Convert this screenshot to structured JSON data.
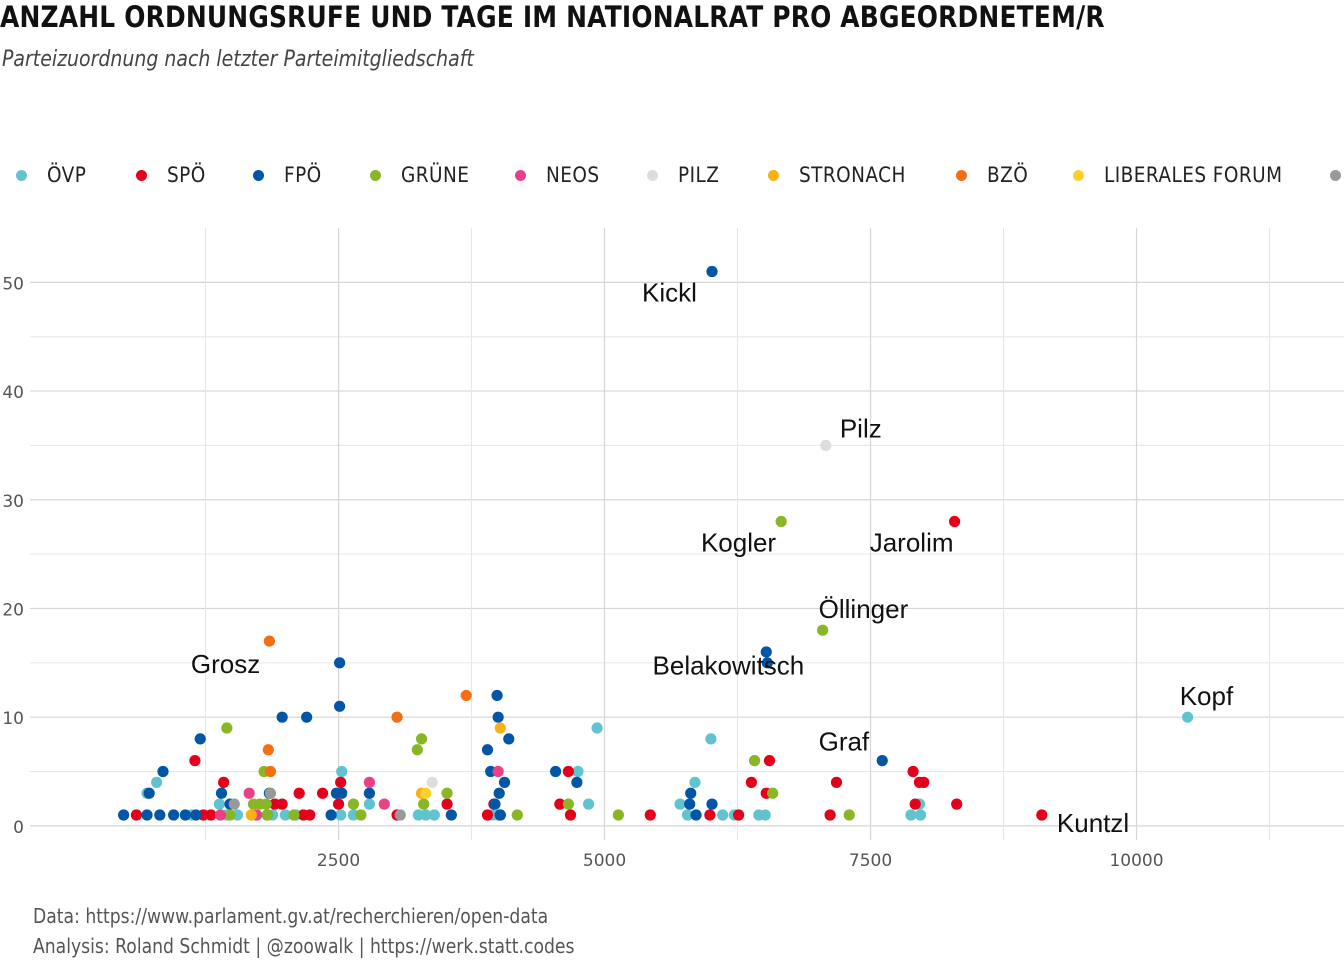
{
  "title": "ANZAHL ORDNUNGSRUFE UND TAGE IM NATIONALRAT PRO ABGEORDNETEM/R",
  "subtitle": "Parteizuordnung nach letzter Parteimitgliedschaft",
  "caption": {
    "line1": "Data: https://www.parlament.gv.at/recherchieren/open-data",
    "line2": "Analysis: Roland Schmidt | @zoowalk | https://werk.statt.codes"
  },
  "colors": {
    "ÖVP": "#62C3D0",
    "SPÖ": "#E3001B",
    "FPÖ": "#0256A5",
    "GRÜNE": "#88B626",
    "NEOS": "#E84188",
    "PILZ": "#DDDDDD",
    "STRONACH": "#F8B313",
    "BZÖ": "#F46F14",
    "LIBERALES FORUM": "#F9D12E",
    "OHNE": "#999999"
  },
  "legend": [
    {
      "label": "ÖVP",
      "party": "ÖVP"
    },
    {
      "label": "SPÖ",
      "party": "SPÖ"
    },
    {
      "label": "FPÖ",
      "party": "FPÖ"
    },
    {
      "label": "GRÜNE",
      "party": "GRÜNE"
    },
    {
      "label": "NEOS",
      "party": "NEOS"
    },
    {
      "label": "PILZ",
      "party": "PILZ"
    },
    {
      "label": "STRONACH",
      "party": "STRONACH"
    },
    {
      "label": "BZÖ",
      "party": "BZÖ"
    },
    {
      "label": "LIBERALES FORUM",
      "party": "LIBERALES FORUM"
    },
    {
      "label": "",
      "party": "OHNE"
    }
  ],
  "chart_data": {
    "type": "scatter",
    "xlim": [
      -400,
      11950
    ],
    "ylim": [
      -1.3,
      55
    ],
    "x_ticks": [
      2500,
      5000,
      7500,
      10000
    ],
    "x_minor_grid": [
      1250,
      3750,
      6250,
      8750,
      11250
    ],
    "y_ticks": [
      0,
      10,
      20,
      30,
      40,
      50
    ],
    "y_minor_grid": [
      5,
      15,
      25,
      35,
      45
    ],
    "grid": true,
    "legend_position": "top",
    "labels": [
      {
        "text": "Kickl",
        "x": 6000,
        "y": 51
      },
      {
        "text": "Pilz",
        "x": 7080,
        "y": 35
      },
      {
        "text": "Kogler",
        "x": 6650,
        "y": 28
      },
      {
        "text": "Jarolim",
        "x": 8280,
        "y": 28
      },
      {
        "text": "Öllinger",
        "x": 7050,
        "y": 18
      },
      {
        "text": "Belakowitsch",
        "x": 6520,
        "y": 15.5
      },
      {
        "text": "Grosz",
        "x": 1830,
        "y": 17
      },
      {
        "text": "Kopf",
        "x": 10500,
        "y": 10
      },
      {
        "text": "Graf",
        "x": 7600,
        "y": 6
      },
      {
        "text": "Kuntzl",
        "x": 9120,
        "y": 1
      }
    ],
    "series": [
      {
        "party": "ÖVP",
        "points": [
          [
            700,
            3
          ],
          [
            790,
            4
          ],
          [
            1120,
            1
          ],
          [
            1380,
            2
          ],
          [
            1450,
            1
          ],
          [
            1550,
            1
          ],
          [
            1880,
            1
          ],
          [
            2000,
            1
          ],
          [
            2100,
            1
          ],
          [
            2520,
            1
          ],
          [
            2530,
            5
          ],
          [
            2640,
            1
          ],
          [
            2790,
            2
          ],
          [
            3250,
            1
          ],
          [
            3320,
            1
          ],
          [
            3400,
            1
          ],
          [
            3950,
            1
          ],
          [
            4000,
            1
          ],
          [
            4750,
            5
          ],
          [
            4850,
            2
          ],
          [
            4930,
            9
          ],
          [
            5710,
            2
          ],
          [
            5780,
            1
          ],
          [
            5850,
            4
          ],
          [
            6000,
            8
          ],
          [
            6110,
            1
          ],
          [
            6220,
            1
          ],
          [
            6450,
            1
          ],
          [
            6510,
            1
          ],
          [
            7880,
            1
          ],
          [
            7960,
            2
          ],
          [
            7970,
            1
          ],
          [
            10480,
            10
          ]
        ]
      },
      {
        "party": "SPÖ",
        "points": [
          [
            600,
            1
          ],
          [
            1150,
            6
          ],
          [
            1230,
            1
          ],
          [
            1300,
            1
          ],
          [
            1420,
            4
          ],
          [
            1900,
            2
          ],
          [
            1970,
            2
          ],
          [
            2130,
            3
          ],
          [
            2170,
            1
          ],
          [
            2230,
            1
          ],
          [
            2350,
            3
          ],
          [
            2500,
            2
          ],
          [
            2520,
            4
          ],
          [
            3050,
            1
          ],
          [
            3520,
            2
          ],
          [
            3900,
            1
          ],
          [
            3960,
            2
          ],
          [
            4020,
            1
          ],
          [
            4580,
            2
          ],
          [
            4660,
            5
          ],
          [
            4680,
            1
          ],
          [
            5430,
            1
          ],
          [
            5990,
            1
          ],
          [
            6260,
            1
          ],
          [
            6380,
            4
          ],
          [
            6520,
            3
          ],
          [
            6550,
            6
          ],
          [
            7120,
            1
          ],
          [
            7180,
            4
          ],
          [
            7900,
            5
          ],
          [
            7920,
            2
          ],
          [
            7960,
            4
          ],
          [
            8000,
            4
          ],
          [
            8290,
            28
          ],
          [
            8310,
            2
          ],
          [
            9110,
            1
          ]
        ]
      },
      {
        "party": "FPÖ",
        "points": [
          [
            480,
            1
          ],
          [
            700,
            1
          ],
          [
            720,
            3
          ],
          [
            820,
            1
          ],
          [
            850,
            5
          ],
          [
            950,
            1
          ],
          [
            1060,
            1
          ],
          [
            1160,
            1
          ],
          [
            1200,
            8
          ],
          [
            1400,
            3
          ],
          [
            1480,
            2
          ],
          [
            1830,
            1
          ],
          [
            1850,
            3
          ],
          [
            1970,
            10
          ],
          [
            2200,
            10
          ],
          [
            2430,
            1
          ],
          [
            2480,
            3
          ],
          [
            2510,
            15
          ],
          [
            2510,
            11
          ],
          [
            2530,
            3
          ],
          [
            2790,
            3
          ],
          [
            3560,
            1
          ],
          [
            3900,
            7
          ],
          [
            3930,
            5
          ],
          [
            3970,
            2
          ],
          [
            3990,
            12
          ],
          [
            4000,
            10
          ],
          [
            4010,
            3
          ],
          [
            4020,
            1
          ],
          [
            4060,
            4
          ],
          [
            4100,
            8
          ],
          [
            4540,
            5
          ],
          [
            4740,
            4
          ],
          [
            5800,
            2
          ],
          [
            5810,
            3
          ],
          [
            5860,
            1
          ],
          [
            6010,
            2
          ],
          [
            6010,
            51
          ],
          [
            6520,
            16
          ],
          [
            6530,
            15
          ],
          [
            7610,
            6
          ]
        ]
      },
      {
        "party": "GRÜNE",
        "points": [
          [
            1450,
            9
          ],
          [
            1480,
            1
          ],
          [
            1700,
            2
          ],
          [
            1760,
            2
          ],
          [
            1800,
            5
          ],
          [
            1820,
            2
          ],
          [
            1830,
            1
          ],
          [
            2080,
            1
          ],
          [
            2640,
            2
          ],
          [
            2710,
            1
          ],
          [
            3240,
            7
          ],
          [
            3280,
            8
          ],
          [
            3300,
            2
          ],
          [
            3520,
            3
          ],
          [
            4180,
            1
          ],
          [
            4660,
            2
          ],
          [
            5130,
            1
          ],
          [
            6410,
            6
          ],
          [
            6580,
            3
          ],
          [
            6660,
            28
          ],
          [
            7050,
            18
          ],
          [
            7300,
            1
          ]
        ]
      },
      {
        "party": "NEOS",
        "points": [
          [
            1660,
            3
          ],
          [
            1730,
            1
          ],
          [
            1390,
            1
          ],
          [
            2790,
            4
          ],
          [
            2930,
            2
          ],
          [
            4000,
            5
          ]
        ]
      },
      {
        "party": "PILZ",
        "points": [
          [
            3380,
            4
          ],
          [
            7080,
            35
          ]
        ]
      },
      {
        "party": "STRONACH",
        "points": [
          [
            1680,
            1
          ],
          [
            3280,
            3
          ],
          [
            4020,
            9
          ]
        ]
      },
      {
        "party": "BZÖ",
        "points": [
          [
            1850,
            17
          ],
          [
            1840,
            7
          ],
          [
            1860,
            5
          ],
          [
            3050,
            10
          ],
          [
            3700,
            12
          ]
        ]
      },
      {
        "party": "LIBERALES FORUM",
        "points": [
          [
            3320,
            3
          ]
        ]
      },
      {
        "party": "OHNE",
        "points": [
          [
            1520,
            2
          ],
          [
            3080,
            1
          ],
          [
            1860,
            3
          ]
        ]
      }
    ]
  }
}
